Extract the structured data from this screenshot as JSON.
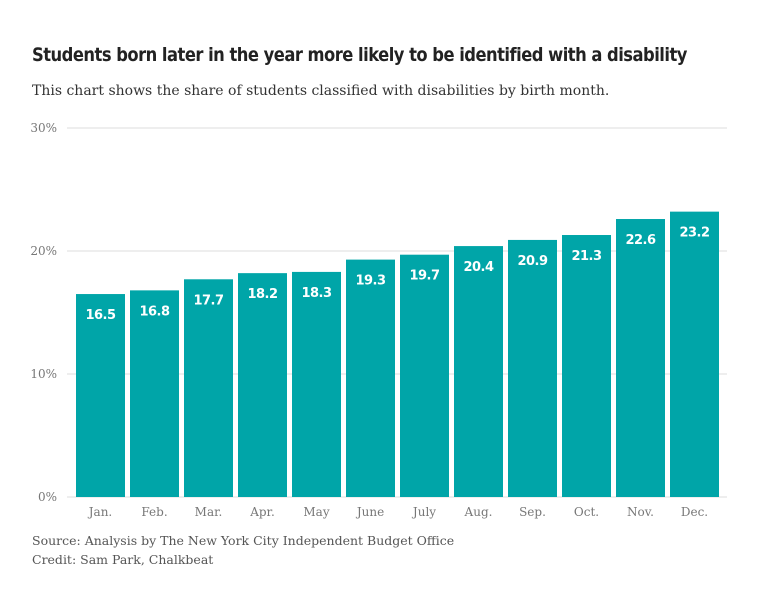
{
  "header": {
    "title": "Students born later in the year more likely to be identified with a disability",
    "subtitle": "This chart shows the share of students classified with disabilities by birth month."
  },
  "footer": {
    "source": "Source: Analysis by The New York City Independent Budget Office",
    "credit": "Credit: Sam Park, Chalkbeat"
  },
  "colors": {
    "bar": "#00a5a8",
    "label": "#ffffff",
    "grid": "#dddddd",
    "tick": "#777777"
  },
  "chart_data": {
    "type": "bar",
    "categories": [
      "Jan.",
      "Feb.",
      "Mar.",
      "Apr.",
      "May",
      "June",
      "July",
      "Aug.",
      "Sep.",
      "Oct.",
      "Nov.",
      "Dec."
    ],
    "values": [
      16.5,
      16.8,
      17.7,
      18.2,
      18.3,
      19.3,
      19.7,
      20.4,
      20.9,
      21.3,
      22.6,
      23.2
    ],
    "data_labels": [
      "16.5",
      "16.8",
      "17.7",
      "18.2",
      "18.3",
      "19.3",
      "19.7",
      "20.4",
      "20.9",
      "21.3",
      "22.6",
      "23.2"
    ],
    "title": "Students born later in the year more likely to be identified with a disability",
    "xlabel": "",
    "ylabel": "",
    "ylim": [
      0,
      30
    ],
    "yticks": [
      0,
      10,
      20,
      30
    ],
    "ytick_labels": [
      "0%",
      "10%",
      "20%",
      "30%"
    ],
    "grid": true,
    "legend": "none"
  }
}
